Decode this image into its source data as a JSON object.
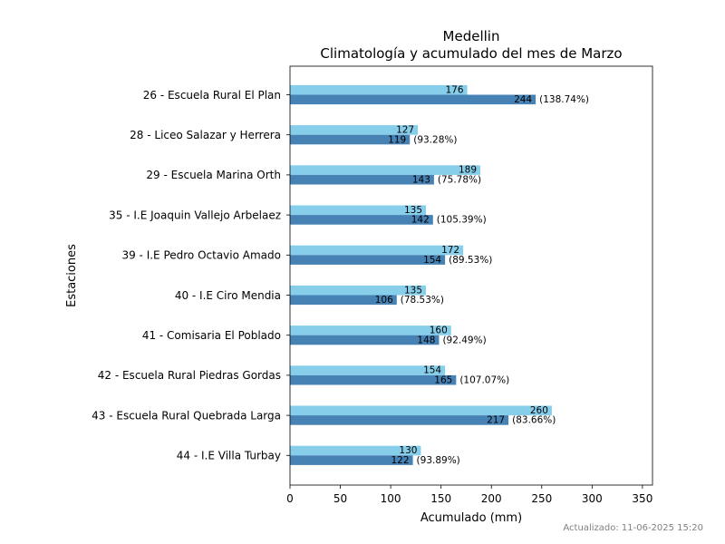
{
  "chart_data": {
    "type": "bar",
    "orientation": "horizontal",
    "title": "Medellin",
    "subtitle": "Climatología y acumulado del mes de Marzo",
    "xlabel": "Acumulado (mm)",
    "ylabel": "Estaciones",
    "xlim": [
      0,
      360
    ],
    "xticks": [
      0,
      50,
      100,
      150,
      200,
      250,
      300,
      350
    ],
    "grid": false,
    "categories": [
      "26 - Escuela Rural El Plan",
      "28 - Liceo Salazar y Herrera",
      "29 - Escuela Marina Orth",
      "35 - I.E Joaquin Vallejo Arbelaez ",
      "39 - I.E Pedro Octavio Amado",
      "40 - I.E Ciro Mendia",
      "41 - Comisaria El Poblado",
      "42 - Escuela Rural Piedras Gordas",
      "43 - Escuela Rural Quebrada Larga",
      "44 - I.E Villa Turbay"
    ],
    "series": [
      {
        "color": "#87ceeb",
        "values": [
          176,
          127,
          189,
          135,
          172,
          135,
          160,
          154,
          260,
          130
        ]
      },
      {
        "color": "#4682b4",
        "values": [
          244,
          119,
          143,
          142,
          154,
          106,
          148,
          165,
          217,
          122
        ],
        "percent_labels": [
          "(138.74%)",
          "(93.28%)",
          "(75.78%)",
          "(105.39%)",
          "(89.53%)",
          "(78.53%)",
          "(92.49%)",
          "(107.07%)",
          "(83.66%)",
          "(93.89%)"
        ]
      }
    ]
  },
  "footer": "Actualizado: 11-06-2025 15:20"
}
